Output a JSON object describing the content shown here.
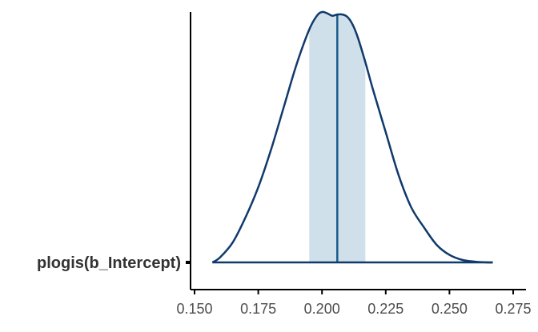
{
  "chart_data": {
    "type": "area",
    "title": "",
    "xlabel": "",
    "ylabel": "",
    "xlim": [
      0.15,
      0.275
    ],
    "x_ticks": [
      "0.150",
      "0.175",
      "0.200",
      "0.225",
      "0.250",
      "0.275"
    ],
    "y_categories": [
      "plogis(b_Intercept)"
    ],
    "grid": false,
    "series": [
      {
        "kind": "density",
        "x": [
          0.157,
          0.16,
          0.165,
          0.17,
          0.175,
          0.18,
          0.185,
          0.19,
          0.195,
          0.198,
          0.2,
          0.202,
          0.204,
          0.206,
          0.208,
          0.21,
          0.212,
          0.214,
          0.217,
          0.22,
          0.225,
          0.23,
          0.235,
          0.24,
          0.245,
          0.25,
          0.255,
          0.26,
          0.265,
          0.267
        ],
        "density": [
          0.0,
          0.02,
          0.08,
          0.18,
          0.3,
          0.45,
          0.62,
          0.79,
          0.93,
          0.985,
          1.0,
          0.995,
          0.985,
          0.99,
          0.99,
          0.98,
          0.95,
          0.9,
          0.8,
          0.69,
          0.52,
          0.35,
          0.22,
          0.14,
          0.07,
          0.03,
          0.01,
          0.003,
          0.0,
          0.0
        ]
      }
    ],
    "median": 0.206,
    "interval": [
      0.195,
      0.217
    ],
    "colors": {
      "line": "#0f3a6b",
      "interval_fill": "#d0e0eb",
      "median_line": "#1a5a8a",
      "axis": "#000000"
    }
  }
}
